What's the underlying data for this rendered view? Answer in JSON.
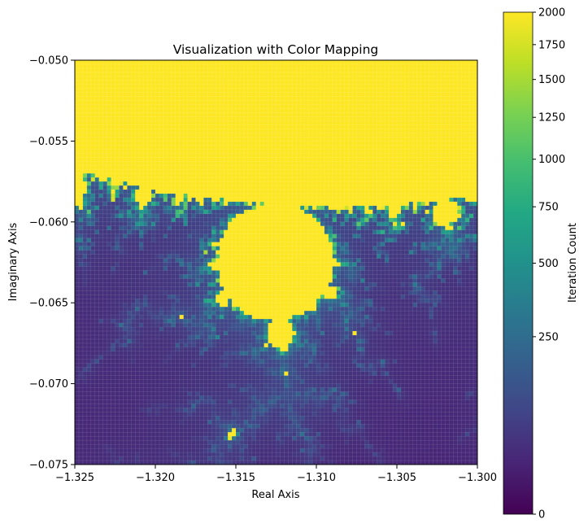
{
  "chart_data": {
    "type": "heatmap",
    "title": "Visualization with Color Mapping",
    "xlabel": "Real Axis",
    "ylabel": "Imaginary Axis",
    "xlim": [
      -1.325,
      -1.3
    ],
    "ylim": [
      -0.075,
      -0.05
    ],
    "xticks": [
      "−1.325",
      "−1.320",
      "−1.315",
      "−1.310",
      "−1.305",
      "−1.300"
    ],
    "xtick_values": [
      -1.325,
      -1.32,
      -1.315,
      -1.31,
      -1.305,
      -1.3
    ],
    "yticks": [
      "−0.050",
      "−0.055",
      "−0.060",
      "−0.065",
      "−0.070",
      "−0.075"
    ],
    "ytick_values": [
      -0.05,
      -0.055,
      -0.06,
      -0.065,
      -0.07,
      -0.075
    ],
    "grid": true,
    "colormap": "viridis",
    "colorbar": {
      "label": "Iteration Count",
      "scale": "sqrt",
      "range": [
        0,
        2000
      ],
      "ticks": [
        "0",
        "250",
        "500",
        "750",
        "1000",
        "1250",
        "1500",
        "1750",
        "2000"
      ],
      "tick_values": [
        0,
        250,
        500,
        750,
        1000,
        1250,
        1500,
        1750,
        2000
      ]
    },
    "grid_resolution": [
      100,
      100
    ],
    "max_iterations": 2000,
    "regions": [
      {
        "name": "escaped-top",
        "value": 2000
      },
      {
        "name": "main-bulb",
        "value": 2000
      },
      {
        "name": "small-bulb",
        "value": 2000
      },
      {
        "name": "background",
        "value": 110
      }
    ]
  }
}
